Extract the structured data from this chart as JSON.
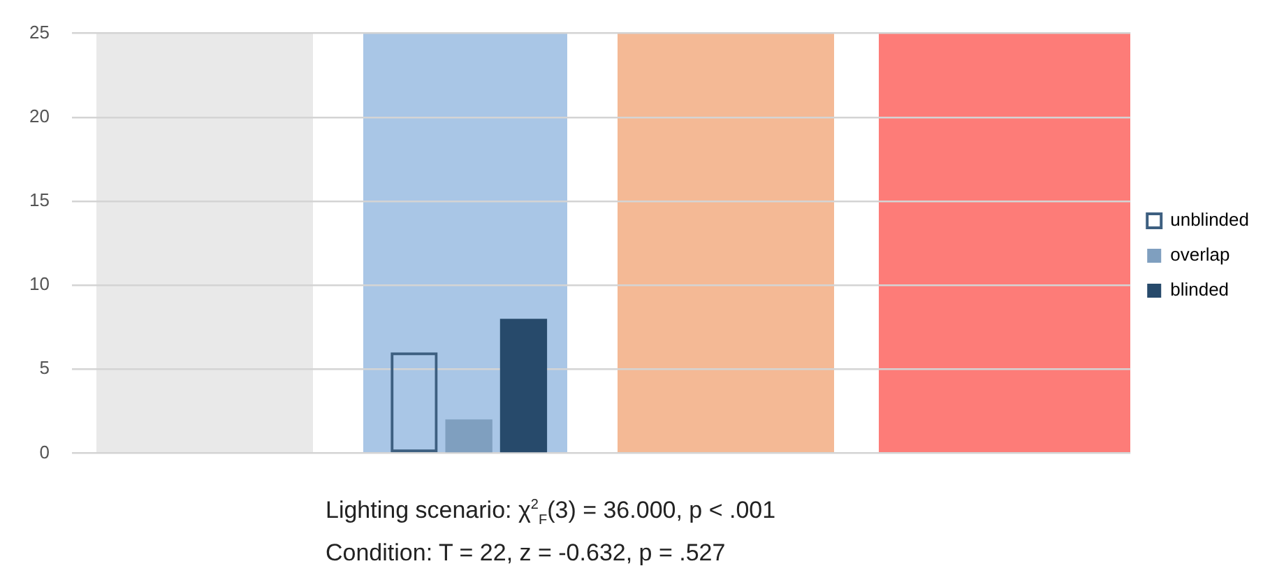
{
  "chart_data": {
    "type": "bar",
    "categories": [
      null,
      null,
      null,
      null
    ],
    "series": [
      {
        "name": "unblinded",
        "color": "#3d5f80",
        "values": [
          null,
          6,
          null,
          null
        ]
      },
      {
        "name": "overlap",
        "color": "#7f9fbf",
        "values": [
          null,
          2,
          null,
          null
        ]
      },
      {
        "name": "blinded",
        "color": "#274a6b",
        "values": [
          null,
          8,
          null,
          null
        ]
      }
    ],
    "ylim": [
      0,
      25
    ],
    "yticks": [
      0,
      5,
      10,
      15,
      20,
      25
    ],
    "grid": "y",
    "legend": "right",
    "annotations": [
      "Lighting scenario: χ$^{2}$$_{F}$(3)  = 36.000, p < .001",
      "Condition: T = 22,  z = -0.632, p = .527"
    ]
  }
}
